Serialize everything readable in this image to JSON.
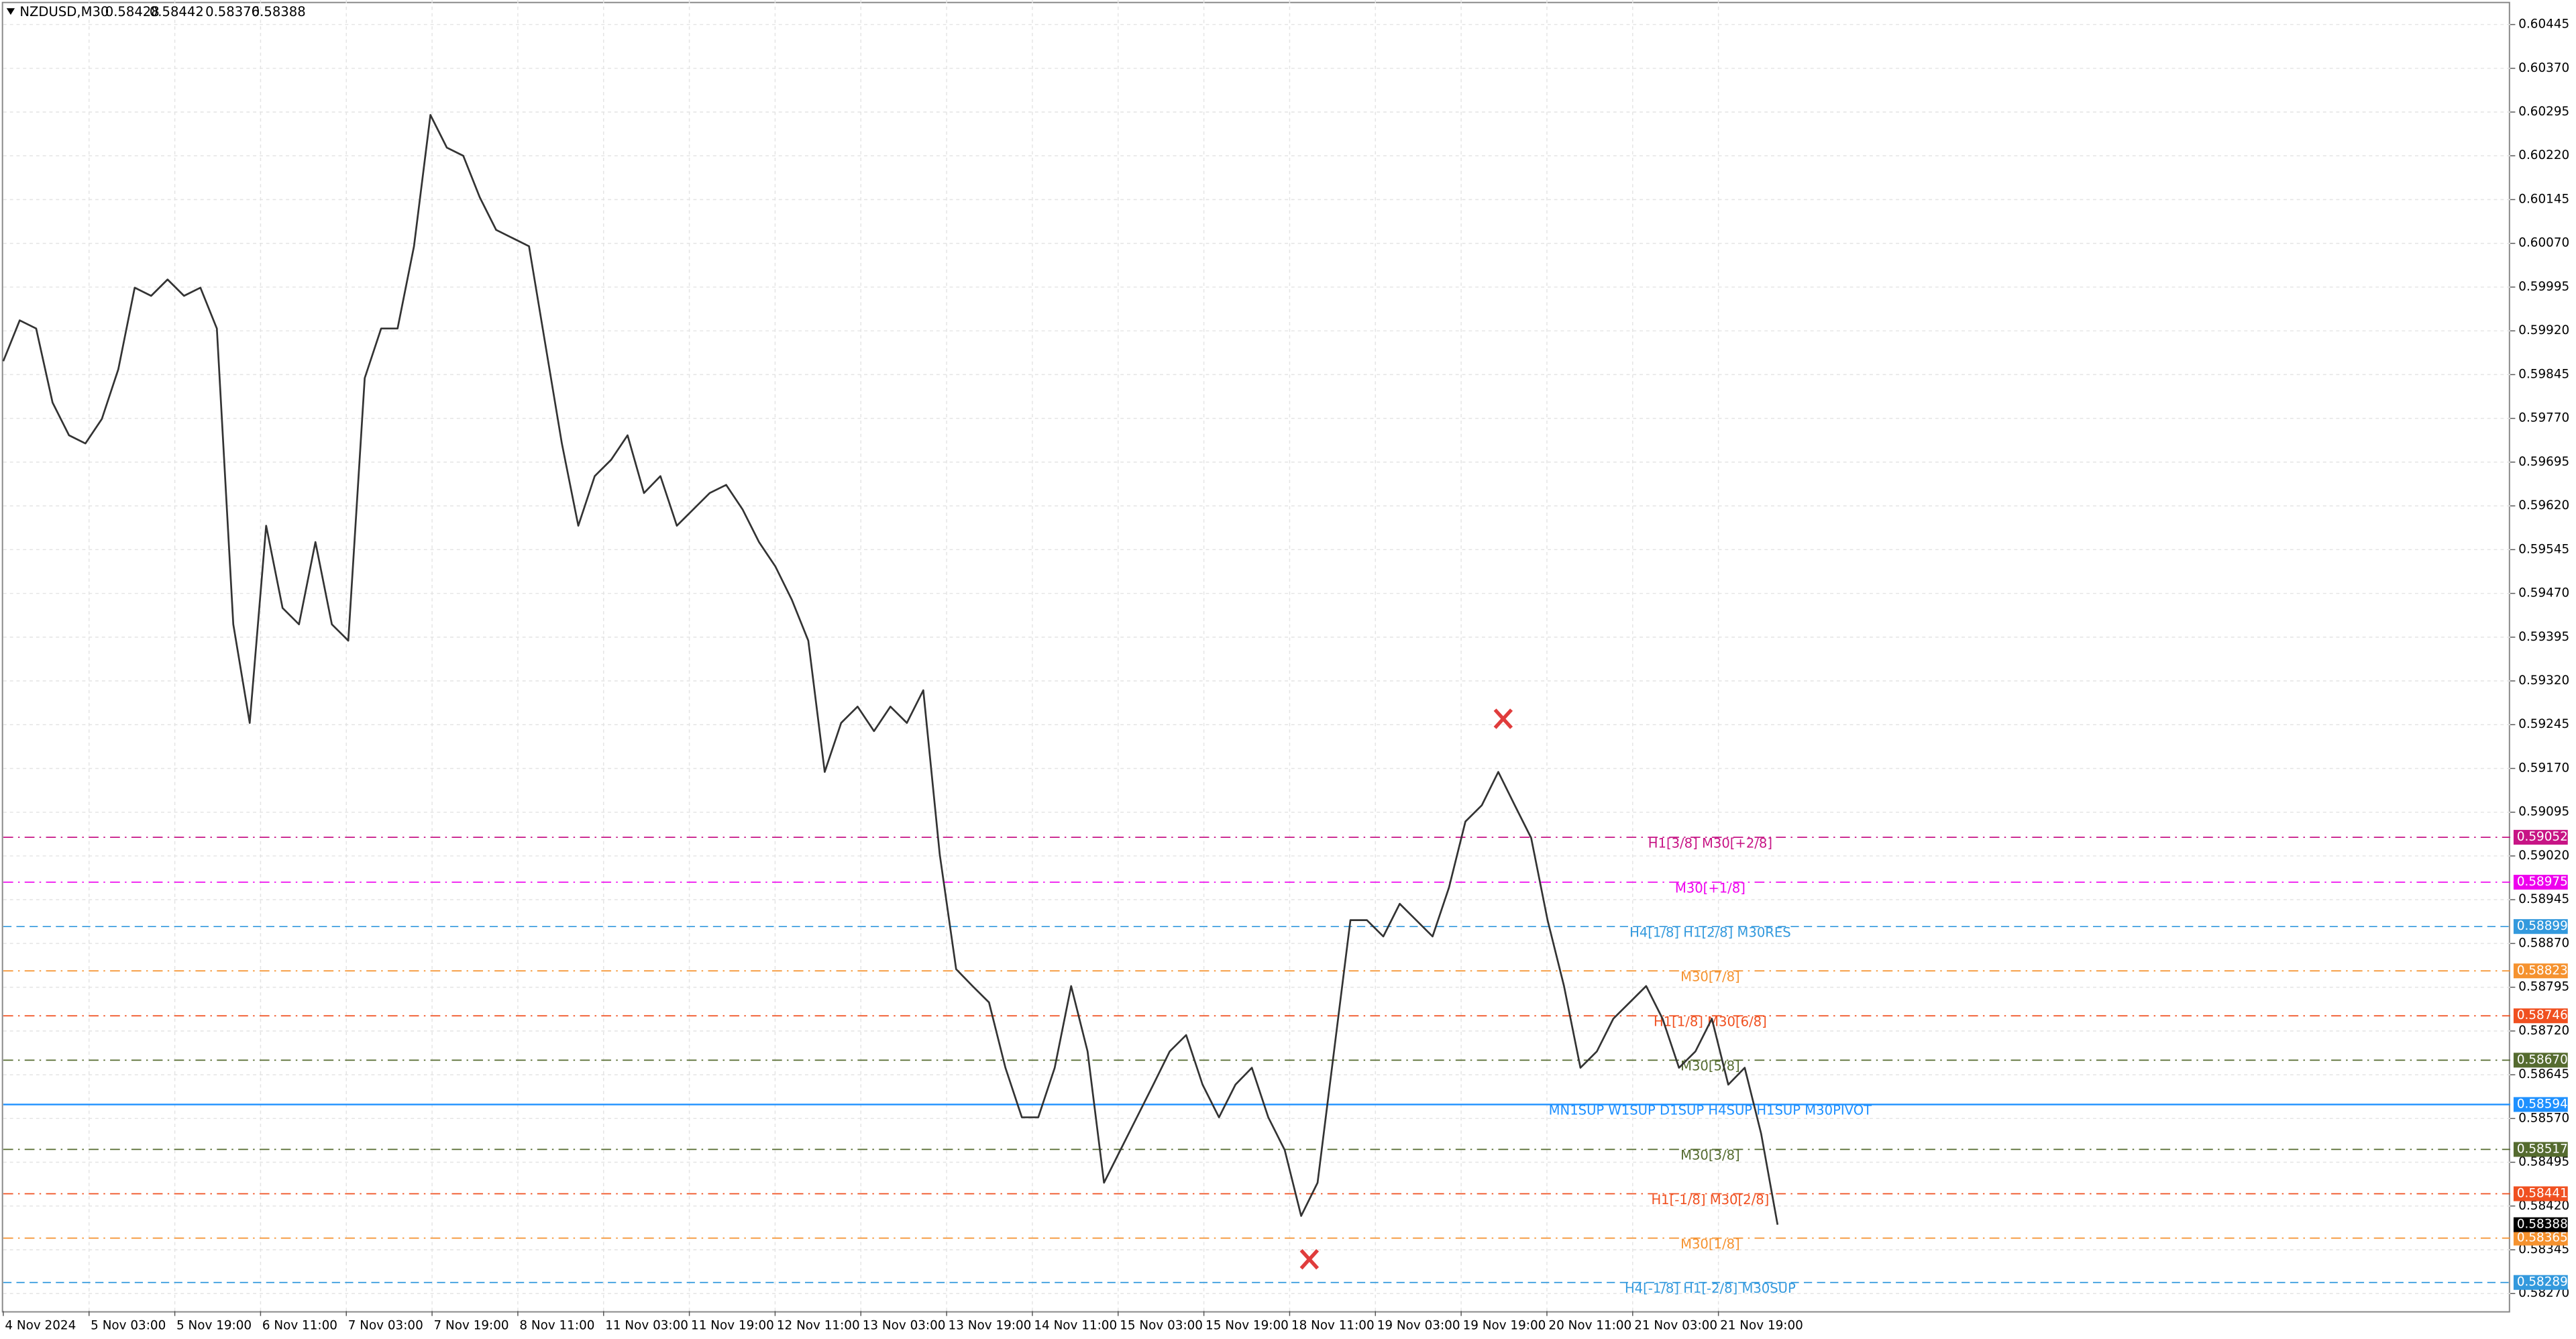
{
  "chart_data": {
    "type": "line",
    "title": "NZDUSD,M30",
    "quote": {
      "open": 0.58428,
      "high": 0.58442,
      "low": 0.58376,
      "close": 0.58388
    },
    "x_labels": [
      "4 Nov 2024",
      "5 Nov 03:00",
      "5 Nov 19:00",
      "6 Nov 11:00",
      "7 Nov 03:00",
      "7 Nov 19:00",
      "8 Nov 11:00",
      "11 Nov 03:00",
      "11 Nov 19:00",
      "12 Nov 11:00",
      "13 Nov 03:00",
      "13 Nov 19:00",
      "14 Nov 11:00",
      "15 Nov 03:00",
      "15 Nov 19:00",
      "18 Nov 11:00",
      "19 Nov 03:00",
      "19 Nov 19:00",
      "20 Nov 11:00",
      "21 Nov 03:00",
      "21 Nov 19:00"
    ],
    "color": "#333333",
    "values": [
      0.59868,
      0.59938,
      0.59924,
      0.59797,
      0.59741,
      0.59727,
      0.59769,
      0.59854,
      0.59994,
      0.5998,
      0.60008,
      0.5998,
      0.59994,
      0.59924,
      0.59417,
      0.59248,
      0.59586,
      0.59445,
      0.59417,
      0.59558,
      0.59417,
      0.59389,
      0.59839,
      0.59924,
      0.59924,
      0.60065,
      0.6029,
      0.60234,
      0.6022,
      0.60149,
      0.60093,
      0.60079,
      0.60065,
      0.59896,
      0.59727,
      0.59586,
      0.59671,
      0.59699,
      0.59741,
      0.59642,
      0.59671,
      0.59586,
      0.59614,
      0.59642,
      0.59656,
      0.59614,
      0.59558,
      0.59516,
      0.59459,
      0.59389,
      0.59164,
      0.59248,
      0.59276,
      0.59234,
      0.59276,
      0.59248,
      0.59304,
      0.59023,
      0.58826,
      0.58797,
      0.58769,
      0.58657,
      0.58572,
      0.58572,
      0.58657,
      0.58797,
      0.58685,
      0.5846,
      0.58516,
      0.58572,
      0.58628,
      0.58685,
      0.58713,
      0.58628,
      0.58572,
      0.58628,
      0.58657,
      0.58572,
      0.58516,
      0.58403,
      0.5846,
      0.58685,
      0.5891,
      0.5891,
      0.58882,
      0.58938,
      0.5891,
      0.58882,
      0.58966,
      0.59079,
      0.59107,
      0.59164,
      0.59107,
      0.59051,
      0.5891,
      0.58797,
      0.58657,
      0.58685,
      0.58741,
      0.58769,
      0.58797,
      0.58741,
      0.58657,
      0.58685,
      0.58741,
      0.58628,
      0.58657,
      0.58544,
      0.58388
    ],
    "ylim": [
      0.5824,
      0.60487
    ],
    "yticks": [
      0.60445,
      {
        "value": 0.6037,
        "label": "0.60370"
      },
      0.60295,
      {
        "value": 0.6022,
        "label": "0.60220"
      },
      0.60145,
      {
        "value": 0.6007,
        "label": "0.60070"
      },
      0.59995,
      {
        "value": 0.5992,
        "label": "0.59920"
      },
      0.59845,
      {
        "value": 0.5977,
        "label": "0.59770"
      },
      0.59695,
      {
        "value": 0.5962,
        "label": "0.59620"
      },
      0.59545,
      {
        "value": 0.5947,
        "label": "0.59470"
      },
      0.59395,
      {
        "value": 0.5932,
        "label": "0.59320"
      },
      0.59245,
      {
        "value": 0.5917,
        "label": "0.59170"
      },
      0.59095,
      {
        "value": 0.5902,
        "label": "0.59020"
      },
      0.58945,
      {
        "value": 0.5887,
        "label": "0.58870"
      },
      0.58795,
      {
        "value": 0.5872,
        "label": "0.58720"
      },
      0.58645,
      {
        "value": 0.5857,
        "label": "0.58570"
      },
      0.58495,
      {
        "value": 0.5842,
        "label": "0.58420"
      },
      0.58345,
      {
        "value": 0.5827,
        "label": "0.58270"
      }
    ],
    "grid": true,
    "levels": [
      {
        "value": 0.59052,
        "label": "H1[3/8] M30[+2/8]",
        "color": "#c71585",
        "style": "dashdot"
      },
      {
        "value": 0.58975,
        "label": "M30[+1/8]",
        "color": "#ee00ee",
        "style": "dashdot"
      },
      {
        "value": 0.58899,
        "label": "H4[1/8] H1[2/8] M30RES",
        "color": "#3399dd",
        "style": "dashed"
      },
      {
        "value": 0.58823,
        "label": "M30[7/8]",
        "color": "#f5922f",
        "style": "dashdot"
      },
      {
        "value": 0.58746,
        "label": "H1[1/8] M30[6/8]",
        "color": "#f05020",
        "style": "dashdot"
      },
      {
        "value": 0.5867,
        "value_label": "0.58670",
        "label": "M30[5/8]",
        "color": "#556b2f",
        "style": "dashdot"
      },
      {
        "value": 0.58594,
        "label": "MN1SUP W1SUP D1SUP H4SUP H1SUP M30PIVOT",
        "color": "#1e90ff",
        "style": "solid"
      },
      {
        "value": 0.58517,
        "label": "M30[3/8]",
        "color": "#556b2f",
        "style": "dashdot"
      },
      {
        "value": 0.58441,
        "label": "H1[-1/8] M30[2/8]",
        "color": "#f05020",
        "style": "dashdot"
      },
      {
        "value": 0.58365,
        "label": "M30[1/8]",
        "color": "#f5922f",
        "style": "dashdot"
      },
      {
        "value": 0.58289,
        "label": "H4[-1/8] H1[-2/8] M30SUP",
        "color": "#3399dd",
        "style": "dashed"
      }
    ]
  }
}
